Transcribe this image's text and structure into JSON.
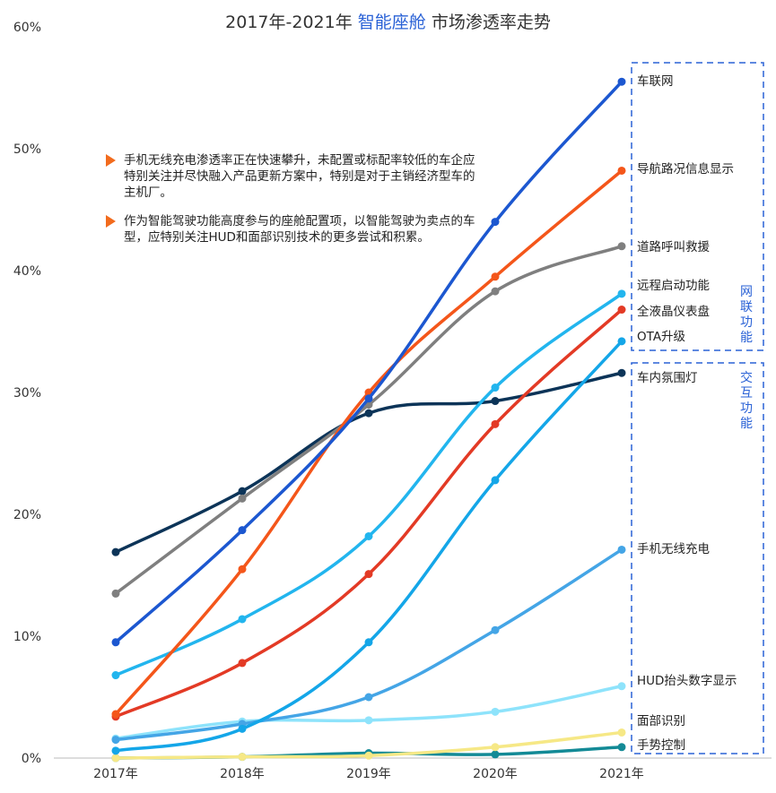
{
  "title": {
    "prefix": "2017年-2021年 ",
    "highlight": "智能座舱",
    "suffix": " 市场渗透率走势"
  },
  "notes": [
    "手机无线充电渗透率正在快速攀升，未配置或标配率较低的车企应特别关注并尽快融入产品更新方案中，特别是对于主销经济型车的主机厂。",
    "作为智能驾驶功能高度参与的座舱配置项，以智能驾驶为卖点的车型，应特别关注HUD和面部识别技术的更多尝试和积累。"
  ],
  "groups": [
    {
      "label": "网联功能",
      "color": "#2a62d6"
    },
    {
      "label": "交互功能",
      "color": "#2a62d6"
    }
  ],
  "chart_data": {
    "type": "line",
    "title": "2017年-2021年 智能座舱 市场渗透率走势",
    "categories": [
      "2017年",
      "2018年",
      "2019年",
      "2020年",
      "2021年"
    ],
    "ylim": [
      0,
      60
    ],
    "yticks": [
      0,
      10,
      20,
      30,
      40,
      50,
      60
    ],
    "ytick_labels": [
      "0%",
      "10%",
      "20%",
      "30%",
      "40%",
      "50%",
      "60%"
    ],
    "grid": false,
    "legend": "end-of-line labels",
    "series": [
      {
        "name": "车联网",
        "color": "#1c57d0",
        "values": [
          9.5,
          18.7,
          29.5,
          44.0,
          55.5
        ]
      },
      {
        "name": "导航路况信息显示",
        "color": "#f4561a",
        "values": [
          3.6,
          15.5,
          30.0,
          39.5,
          48.2
        ]
      },
      {
        "name": "道路呼叫救援",
        "color": "#7f7f7f",
        "values": [
          13.5,
          21.3,
          29.0,
          38.3,
          42.0
        ]
      },
      {
        "name": "远程启动功能",
        "color": "#22b5ee",
        "values": [
          6.8,
          11.4,
          18.2,
          30.4,
          38.1
        ]
      },
      {
        "name": "全液晶仪表盘",
        "color": "#e33a25",
        "values": [
          3.4,
          7.8,
          15.1,
          27.4,
          36.8
        ]
      },
      {
        "name": "OTA升级",
        "color": "#14a6e8",
        "values": [
          0.6,
          2.4,
          9.5,
          22.8,
          34.2
        ]
      },
      {
        "name": "车内氛围灯",
        "color": "#0c3458",
        "values": [
          16.9,
          21.9,
          28.3,
          29.3,
          31.6
        ]
      },
      {
        "name": "手机无线充电",
        "color": "#44a5e6",
        "values": [
          1.5,
          2.8,
          5.0,
          10.5,
          17.1
        ]
      },
      {
        "name": "HUD抬头数字显示",
        "color": "#8ee3fb",
        "values": [
          1.6,
          3.0,
          3.1,
          3.8,
          5.9
        ]
      },
      {
        "name": "面部识别",
        "color": "#f6e886",
        "values": [
          0.0,
          0.1,
          0.2,
          0.9,
          2.1
        ]
      },
      {
        "name": "手势控制",
        "color": "#138a96",
        "values": [
          0.0,
          0.1,
          0.4,
          0.3,
          0.9
        ]
      }
    ]
  }
}
